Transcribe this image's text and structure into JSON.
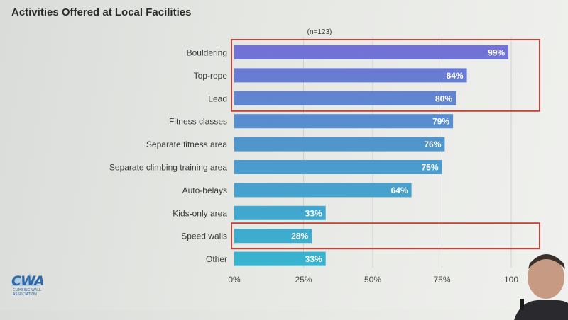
{
  "slide": {
    "title": "Activities Offered at Local Facilities",
    "logo_text": "CWA",
    "logo_subtext": "CLIMBING WALL ASSOCIATION"
  },
  "chart_data": {
    "type": "bar",
    "orientation": "horizontal",
    "title": "Activities Offered at Local Facilities",
    "annotation": "(n=123)",
    "categories": [
      "Bouldering",
      "Top-rope",
      "Lead",
      "Fitness classes",
      "Separate fitness area",
      "Separate climbing training area",
      "Auto-belays",
      "Kids-only area",
      "Speed walls",
      "Other"
    ],
    "values": [
      99,
      84,
      80,
      79,
      76,
      75,
      64,
      33,
      28,
      33
    ],
    "value_labels": [
      "99%",
      "84%",
      "80%",
      "79%",
      "76%",
      "75%",
      "64%",
      "33%",
      "28%",
      "33%"
    ],
    "xlim": [
      0,
      100
    ],
    "x_ticks": [
      0,
      25,
      50,
      75,
      100
    ],
    "x_tick_labels": [
      "0%",
      "25%",
      "50%",
      "75%",
      "100"
    ],
    "grid": true,
    "colors": {
      "bar_top": "#7470d6",
      "bar_mid": "#4f96cc",
      "bar_bottom": "#37b4cf",
      "highlight_box": "#c0463b"
    },
    "highlight_groups": [
      [
        "Bouldering",
        "Top-rope",
        "Lead"
      ],
      [
        "Speed walls"
      ]
    ]
  }
}
